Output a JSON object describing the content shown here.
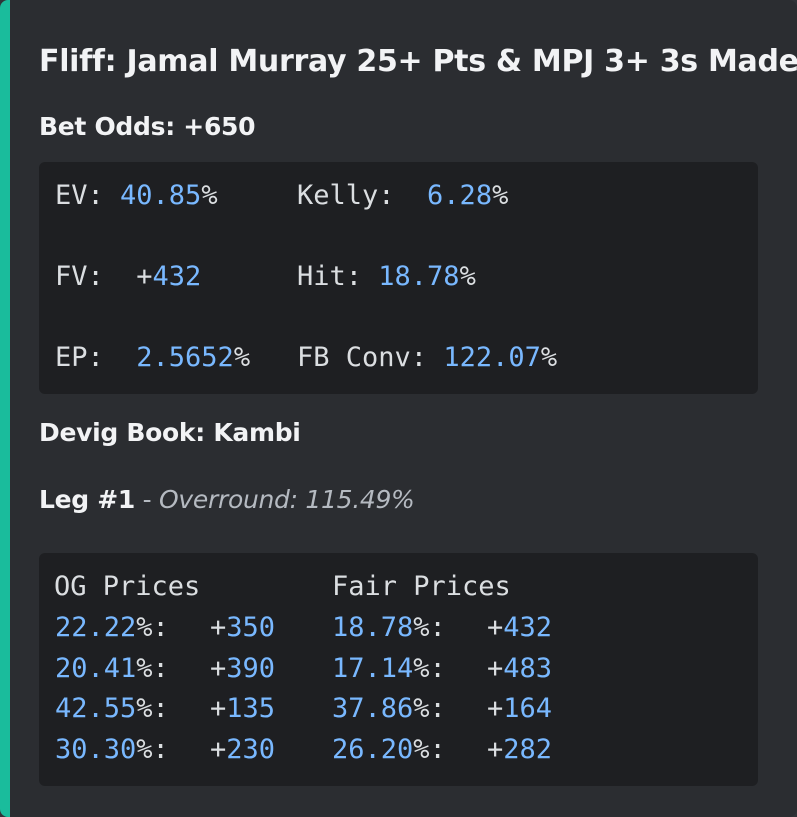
{
  "embed": {
    "title": "Fliff: Jamal Murray 25+ Pts & MPJ 3+ 3s Made",
    "bet_odds_label": "Bet Odds: ",
    "bet_odds_value": "+650",
    "accent_color": "#1abc9c"
  },
  "stats": {
    "ev_label": "EV: ",
    "ev_value": "40.85",
    "ev_unit": "%",
    "kelly_label": "Kelly:  ",
    "kelly_value": "6.28",
    "kelly_unit": "%",
    "fv_label": "FV:  ",
    "fv_sign": "+",
    "fv_value": "432",
    "hit_label": "Hit: ",
    "hit_value": "18.78",
    "hit_unit": "%",
    "ep_label": "EP:  ",
    "ep_value": "2.5652",
    "ep_unit": "%",
    "fbconv_label": "FB Conv: ",
    "fbconv_value": "122.07",
    "fbconv_unit": "%"
  },
  "devig": {
    "label": "Devig Book: ",
    "value": "Kambi"
  },
  "leg": {
    "label": "Leg #1",
    "dash": " - ",
    "overround": "Overround: 115.49%"
  },
  "prices": {
    "og_header": "OG Prices",
    "fair_header": "Fair Prices",
    "rows": [
      {
        "og_pct": "22.22",
        "og_odds": "350",
        "fair_pct": "18.78",
        "fair_odds": "432"
      },
      {
        "og_pct": "20.41",
        "og_odds": "390",
        "fair_pct": "17.14",
        "fair_odds": "483"
      },
      {
        "og_pct": "42.55",
        "og_odds": "135",
        "fair_pct": "37.86",
        "fair_odds": "164"
      },
      {
        "og_pct": "30.30",
        "og_odds": "230",
        "fair_pct": "26.20",
        "fair_odds": "282"
      }
    ],
    "pct_suffix": "%:",
    "plus": "+"
  }
}
